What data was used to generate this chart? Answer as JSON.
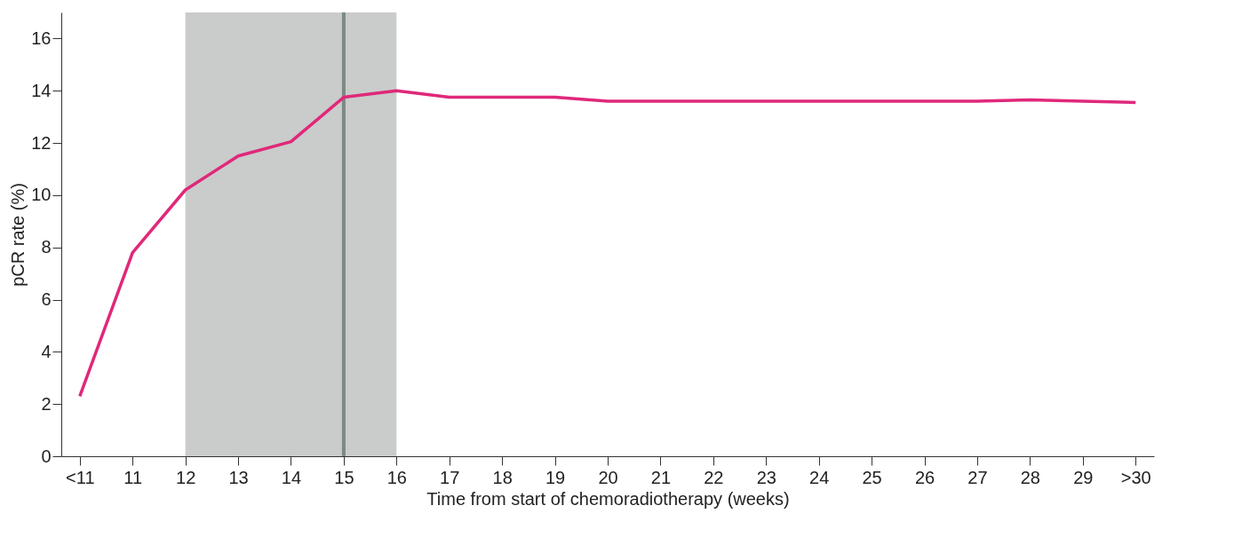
{
  "chart_data": {
    "type": "line",
    "xlabel": "Time from start of chemoradiotherapy (weeks)",
    "ylabel": "pCR rate (%)",
    "categories": [
      "<11",
      "11",
      "12",
      "13",
      "14",
      "15",
      "16",
      "17",
      "18",
      "19",
      "20",
      "21",
      "22",
      "23",
      "24",
      "25",
      "26",
      "27",
      "28",
      "29",
      ">30"
    ],
    "series": [
      {
        "color": "#e0287a",
        "values": [
          2.3,
          7.8,
          10.2,
          11.5,
          12.05,
          13.75,
          14.0,
          13.75,
          13.75,
          13.75,
          13.6,
          13.6,
          13.6,
          13.6,
          13.6,
          13.6,
          13.6,
          13.6,
          13.65,
          13.6,
          13.55
        ]
      }
    ],
    "ylim": [
      0,
      17
    ],
    "yticks": [
      0,
      2,
      4,
      6,
      8,
      10,
      12,
      14,
      16
    ],
    "bands": [
      {
        "axis": "x",
        "from": "12",
        "to": "16",
        "color": "#c9cccb"
      }
    ],
    "ref_lines": [
      {
        "axis": "x",
        "value": "15",
        "color": "#7b8a83"
      }
    ],
    "grid": false,
    "marker": "none",
    "line_style": "solid"
  }
}
